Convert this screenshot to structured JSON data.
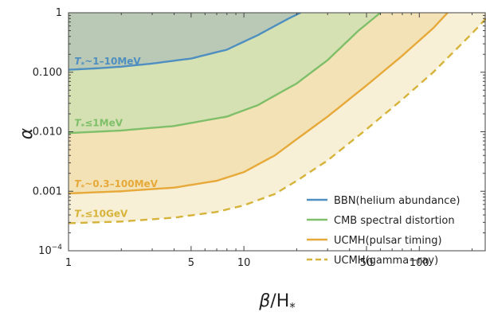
{
  "chart_data": {
    "type": "line",
    "xscale": "log",
    "yscale": "log",
    "xlim": [
      1,
      240
    ],
    "ylim": [
      0.0001,
      1
    ],
    "xlabel_main": "β",
    "xlabel_sub": "/H",
    "xlabel_star": "*",
    "ylabel": "α",
    "x_ticks": [
      {
        "value": 1,
        "label": "1"
      },
      {
        "value": 5,
        "label": "5"
      },
      {
        "value": 10,
        "label": "10"
      },
      {
        "value": 50,
        "label": "50"
      },
      {
        "value": 100,
        "label": "100"
      }
    ],
    "y_ticks": [
      {
        "value": 0.0001,
        "label": "10",
        "sup": "−4"
      },
      {
        "value": 0.001,
        "label": "0.001"
      },
      {
        "value": 0.01,
        "label": "0.010"
      },
      {
        "value": 0.1,
        "label": "0.100"
      },
      {
        "value": 1,
        "label": "1"
      }
    ],
    "series": [
      {
        "name": "BBN(helium abundance)",
        "color": "#4f8fc0",
        "fill": "#b9c9b5",
        "dashed": false,
        "x": [
          1,
          1.5,
          2,
          3,
          5,
          8,
          12,
          15,
          18,
          21
        ],
        "y": [
          0.11,
          0.117,
          0.124,
          0.14,
          0.17,
          0.24,
          0.42,
          0.6,
          0.8,
          1.0
        ]
      },
      {
        "name": "CMB spectral distortion",
        "color": "#7fbf6a",
        "fill": "#d6e1b3",
        "dashed": false,
        "x": [
          1,
          2,
          4,
          8,
          12,
          20,
          30,
          45,
          60
        ],
        "y": [
          0.0095,
          0.0105,
          0.0125,
          0.018,
          0.028,
          0.065,
          0.16,
          0.5,
          1.0
        ]
      },
      {
        "name": "UCMH(pulsar timing)",
        "color": "#e6a93a",
        "fill": "#f3e2b5",
        "dashed": false,
        "x": [
          1,
          2,
          4,
          7,
          10,
          15,
          20,
          30,
          50,
          80,
          120,
          145
        ],
        "y": [
          0.00092,
          0.001,
          0.00115,
          0.0015,
          0.0021,
          0.004,
          0.0075,
          0.018,
          0.06,
          0.19,
          0.55,
          1.0
        ]
      },
      {
        "name": "UCMH(gamma−ray)",
        "color": "#d6b33a",
        "fill": "#f8f0d6",
        "dashed": true,
        "x": [
          1,
          2,
          4,
          7,
          10,
          15,
          20,
          30,
          50,
          80,
          120,
          200,
          240
        ],
        "y": [
          0.00029,
          0.00031,
          0.00036,
          0.00045,
          0.00058,
          0.0009,
          0.0015,
          0.0033,
          0.011,
          0.035,
          0.1,
          0.45,
          0.8
        ]
      }
    ],
    "annotations": [
      {
        "prefix": "T",
        "star": "*",
        "text": "~1–10MeV",
        "color": "#4f8fc0",
        "x": 1.08,
        "y": 0.135
      },
      {
        "prefix": "T",
        "star": "*",
        "text": "≤1MeV",
        "color": "#7fbf6a",
        "x": 1.08,
        "y": 0.0125
      },
      {
        "prefix": "T",
        "star": "*",
        "text": "~0.3–100MeV",
        "color": "#e6a93a",
        "x": 1.08,
        "y": 0.00118
      },
      {
        "prefix": "T",
        "star": "*",
        "text": "≤10GeV",
        "color": "#d6b33a",
        "x": 1.08,
        "y": 0.00037
      }
    ],
    "legend_position": "bottom-right",
    "grid": false
  }
}
